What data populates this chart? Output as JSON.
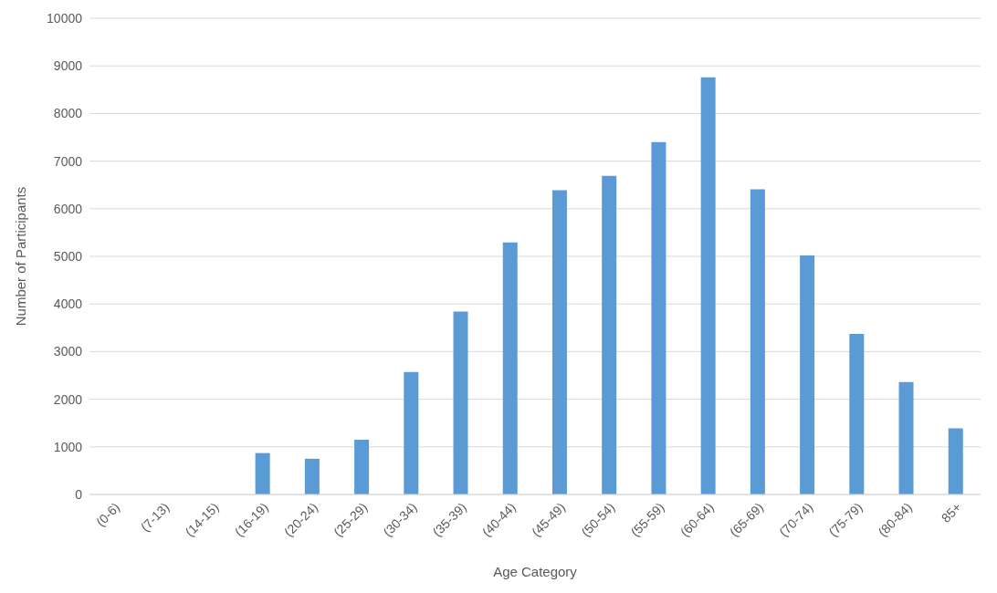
{
  "chart_data": {
    "type": "bar",
    "xlabel": "Age Category",
    "ylabel": "Number of Participants",
    "categories": [
      "(0-6)",
      "(7-13)",
      "(14-15)",
      "(16-19)",
      "(20-24)",
      "(25-29)",
      "(30-34)",
      "(35-39)",
      "(40-44)",
      "(45-49)",
      "(50-54)",
      "(55-59)",
      "(60-64)",
      "(65-69)",
      "(70-74)",
      "(75-79)",
      "(80-84)",
      "85+"
    ],
    "values": [
      0,
      0,
      0,
      870,
      750,
      1150,
      2570,
      3840,
      5290,
      6390,
      6690,
      7400,
      8760,
      6410,
      5020,
      3370,
      2360,
      1390
    ],
    "color": "#5b9bd5",
    "ylim": [
      0,
      10000
    ],
    "yticks": [
      0,
      1000,
      2000,
      3000,
      4000,
      5000,
      6000,
      7000,
      8000,
      9000,
      10000
    ],
    "grid": "y"
  }
}
